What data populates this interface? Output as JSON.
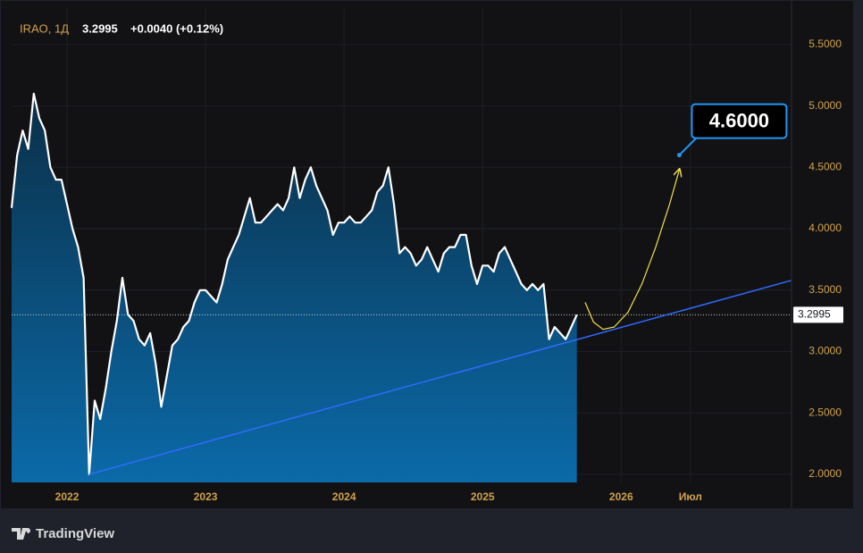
{
  "chart_data": {
    "type": "area",
    "header": {
      "symbol": "IRAO, 1Д",
      "price": "3.2995",
      "change": "+0.0040 (+0.12%)"
    },
    "branding": "TradingView",
    "x": [
      2021.6,
      2021.64,
      2021.68,
      2021.72,
      2021.76,
      2021.8,
      2021.84,
      2021.88,
      2021.92,
      2021.96,
      2022.0,
      2022.04,
      2022.08,
      2022.12,
      2022.16,
      2022.2,
      2022.24,
      2022.28,
      2022.32,
      2022.36,
      2022.4,
      2022.44,
      2022.48,
      2022.52,
      2022.56,
      2022.6,
      2022.64,
      2022.68,
      2022.72,
      2022.76,
      2022.8,
      2022.84,
      2022.88,
      2022.92,
      2022.96,
      2023.0,
      2023.04,
      2023.08,
      2023.12,
      2023.16,
      2023.2,
      2023.24,
      2023.28,
      2023.32,
      2023.36,
      2023.4,
      2023.44,
      2023.48,
      2023.52,
      2023.56,
      2023.6,
      2023.64,
      2023.68,
      2023.72,
      2023.76,
      2023.8,
      2023.84,
      2023.88,
      2023.92,
      2023.96,
      2024.0,
      2024.04,
      2024.08,
      2024.12,
      2024.16,
      2024.2,
      2024.24,
      2024.28,
      2024.32,
      2024.36,
      2024.4,
      2024.44,
      2024.48,
      2024.52,
      2024.56,
      2024.6,
      2024.64,
      2024.68,
      2024.72,
      2024.76,
      2024.8,
      2024.84,
      2024.88,
      2024.92,
      2024.96,
      2025.0,
      2025.04,
      2025.08,
      2025.12,
      2025.16,
      2025.2,
      2025.24,
      2025.28,
      2025.32,
      2025.36,
      2025.4,
      2025.44,
      2025.48,
      2025.52,
      2025.56,
      2025.6,
      2025.64,
      2025.68
    ],
    "series": [
      {
        "color": "#ffffff",
        "values": [
          4.17,
          4.6,
          4.8,
          4.65,
          5.1,
          4.9,
          4.8,
          4.5,
          4.4,
          4.4,
          4.2,
          4.0,
          3.85,
          3.6,
          2.0,
          2.6,
          2.45,
          2.7,
          3.0,
          3.25,
          3.6,
          3.3,
          3.25,
          3.1,
          3.05,
          3.15,
          2.9,
          2.55,
          2.8,
          3.05,
          3.1,
          3.2,
          3.25,
          3.4,
          3.5,
          3.5,
          3.45,
          3.4,
          3.55,
          3.75,
          3.85,
          3.95,
          4.1,
          4.25,
          4.05,
          4.05,
          4.1,
          4.15,
          4.2,
          4.15,
          4.25,
          4.5,
          4.25,
          4.4,
          4.5,
          4.35,
          4.25,
          4.15,
          3.95,
          4.05,
          4.05,
          4.1,
          4.05,
          4.05,
          4.1,
          4.15,
          4.3,
          4.35,
          4.5,
          4.2,
          3.8,
          3.85,
          3.8,
          3.7,
          3.75,
          3.85,
          3.75,
          3.65,
          3.8,
          3.85,
          3.85,
          3.95,
          3.95,
          3.7,
          3.55,
          3.7,
          3.7,
          3.65,
          3.8,
          3.85,
          3.75,
          3.65,
          3.55,
          3.5,
          3.55,
          3.5,
          3.55,
          3.1,
          3.2,
          3.15,
          3.1,
          3.2,
          3.2995
        ]
      }
    ],
    "trendline": {
      "color": "#2f6bff",
      "x": [
        2022.16,
        2027.23
      ],
      "values": [
        2.0,
        3.58
      ]
    },
    "projection": {
      "color": "#f5e04a",
      "x": [
        2025.74,
        2025.8,
        2025.87,
        2025.95,
        2026.05,
        2026.15,
        2026.25,
        2026.35,
        2026.42
      ],
      "values": [
        3.4,
        3.24,
        3.18,
        3.2,
        3.32,
        3.55,
        3.85,
        4.2,
        4.48
      ]
    },
    "target": {
      "x": 2026.42,
      "value": 4.6,
      "label": "4.6000",
      "color": "#2196f3"
    },
    "xlim": [
      2021.6,
      2027.23
    ],
    "ylim": [
      1.934,
      5.79
    ],
    "xticks": [
      2022,
      2023,
      2024,
      2025,
      2026,
      {
        "value": 2026.5,
        "label": "Июл"
      }
    ],
    "yticks": [
      {
        "value": 2,
        "label": "2.0000"
      },
      {
        "value": 2.5,
        "label": "2.5000"
      },
      {
        "value": 3,
        "label": "3.0000"
      },
      {
        "value": 3.5,
        "label": "3.5000"
      },
      {
        "value": 4,
        "label": "4.0000"
      },
      {
        "value": 4.5,
        "label": "4.5000"
      },
      {
        "value": 5,
        "label": "5.0000"
      },
      {
        "value": 5.5,
        "label": "5.5000"
      }
    ],
    "grid": true
  }
}
